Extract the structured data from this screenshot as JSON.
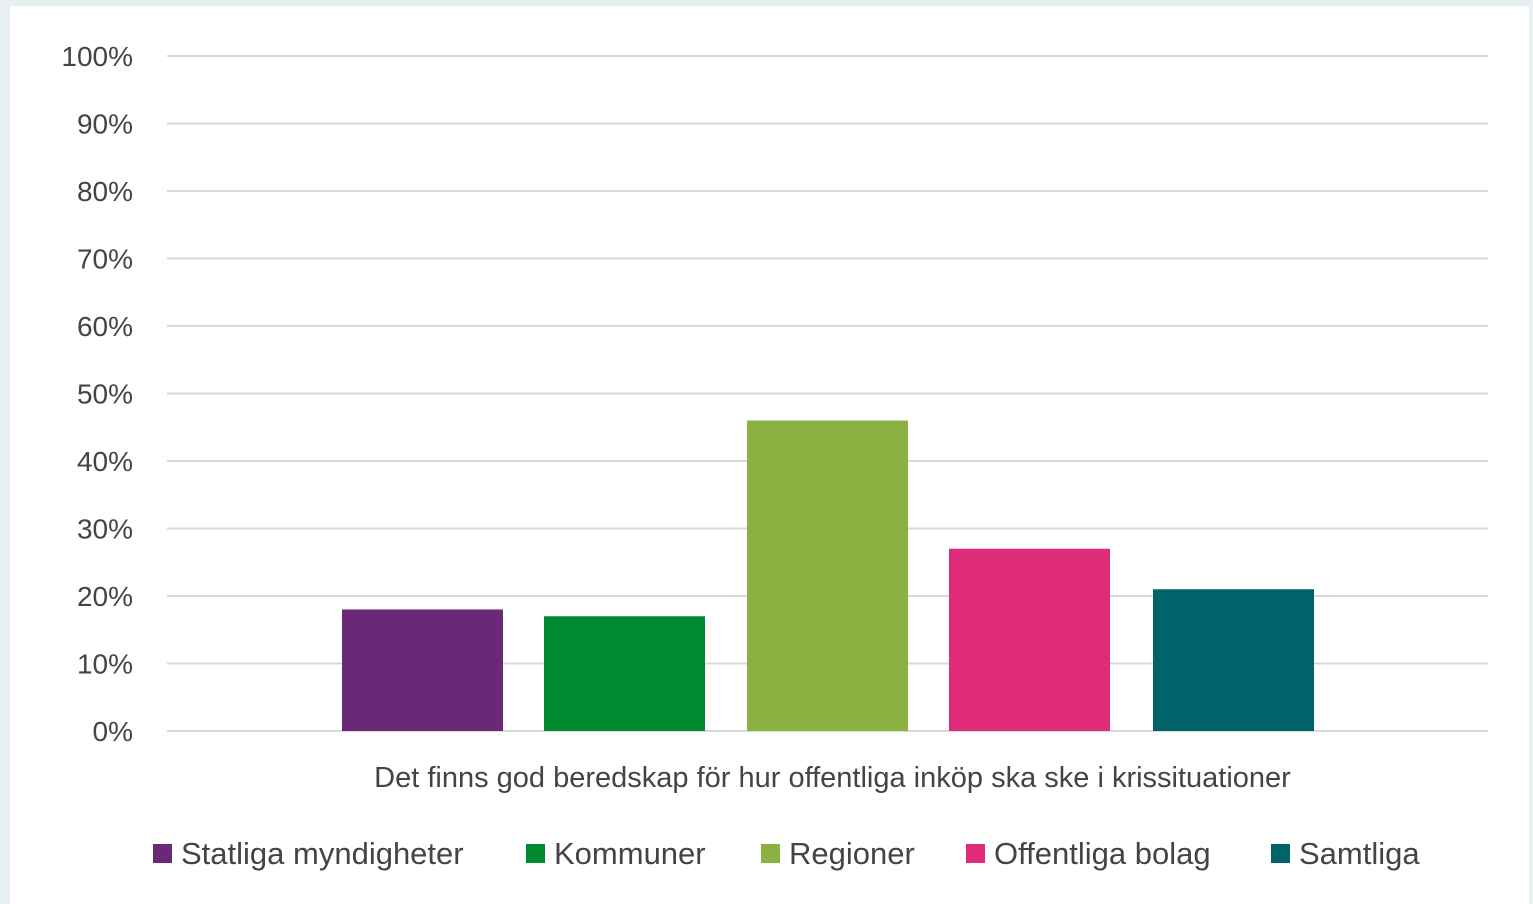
{
  "chart_data": {
    "type": "bar",
    "title": "",
    "xlabel": "",
    "ylabel": "",
    "category": "Det finns god beredskap för hur offentliga inköp ska ske i krissituationer",
    "ylim": [
      0,
      100
    ],
    "yticks": [
      0,
      10,
      20,
      30,
      40,
      50,
      60,
      70,
      80,
      90,
      100
    ],
    "tick_suffix": "%",
    "grid": true,
    "legend_position": "bottom",
    "series": [
      {
        "name": "Statliga myndigheter",
        "value": 18,
        "color": "#6b2876"
      },
      {
        "name": "Kommuner",
        "value": 17,
        "color": "#008a30"
      },
      {
        "name": "Regioner",
        "value": 46,
        "color": "#8bb142"
      },
      {
        "name": "Offentliga bolag",
        "value": 27,
        "color": "#de2c7b"
      },
      {
        "name": "Samtliga",
        "value": 21,
        "color": "#01636a"
      }
    ]
  }
}
